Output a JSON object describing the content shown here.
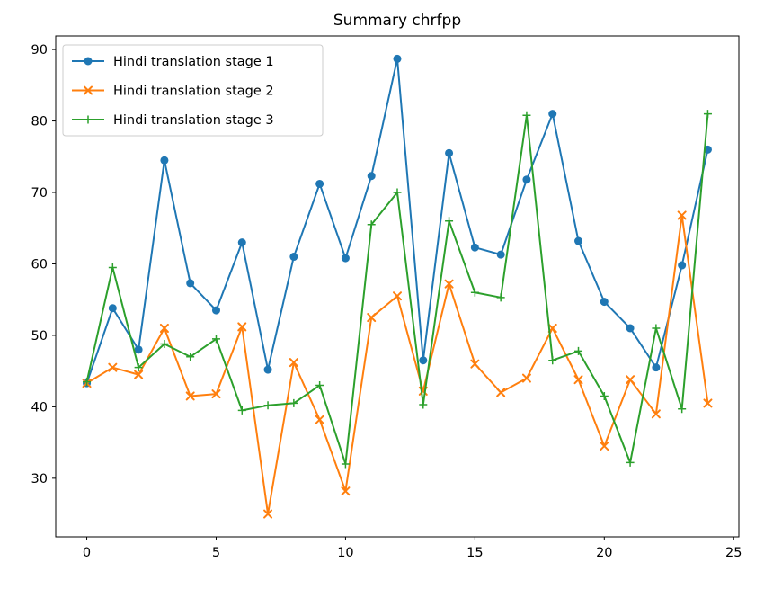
{
  "chart_data": {
    "type": "line",
    "title": "Summary chrfpp",
    "xlabel": "",
    "ylabel": "",
    "grid": false,
    "legend_position": "upper left",
    "xlim": [
      -1.2,
      25.2
    ],
    "ylim": [
      21.8,
      91.9
    ],
    "xticks": [
      0,
      5,
      10,
      15,
      20,
      25
    ],
    "yticks": [
      30,
      40,
      50,
      60,
      70,
      80,
      90
    ],
    "x": [
      0,
      1,
      2,
      3,
      4,
      5,
      6,
      7,
      8,
      9,
      10,
      11,
      12,
      13,
      14,
      15,
      16,
      17,
      18,
      19,
      20,
      21,
      22,
      23,
      24
    ],
    "series": [
      {
        "name": "Hindi translation stage 1",
        "color": "#1f77b4",
        "marker": "circle",
        "values": [
          43.3,
          53.8,
          48.0,
          74.5,
          57.3,
          53.5,
          63.0,
          45.2,
          61.0,
          71.2,
          60.8,
          72.3,
          88.7,
          46.5,
          75.5,
          62.3,
          61.3,
          71.8,
          81.0,
          63.2,
          54.7,
          51.0,
          45.5,
          59.8,
          76.0
        ]
      },
      {
        "name": "Hindi translation stage 2",
        "color": "#ff7f0e",
        "marker": "x",
        "values": [
          43.3,
          45.5,
          44.5,
          51.0,
          41.5,
          41.8,
          51.2,
          25.0,
          46.2,
          38.2,
          28.2,
          52.5,
          55.5,
          42.2,
          57.2,
          46.0,
          42.0,
          44.0,
          51.0,
          43.8,
          34.5,
          43.8,
          39.0,
          66.8,
          40.5
        ]
      },
      {
        "name": "Hindi translation stage 3",
        "color": "#2ca02c",
        "marker": "plus",
        "values": [
          43.5,
          59.5,
          45.5,
          48.8,
          47.0,
          49.5,
          39.5,
          40.2,
          40.5,
          43.0,
          32.0,
          65.5,
          70.0,
          40.3,
          66.0,
          56.0,
          55.3,
          80.8,
          46.5,
          47.8,
          41.5,
          32.2,
          51.0,
          39.7,
          81.0
        ]
      }
    ]
  }
}
